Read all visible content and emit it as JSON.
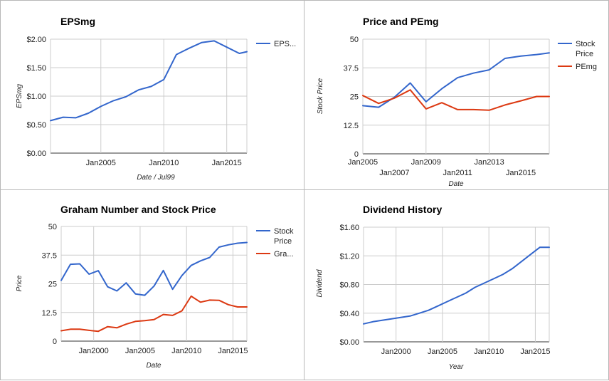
{
  "chart_data": [
    {
      "type": "line",
      "title": "EPSmg",
      "xlabel": "Date / Jul99",
      "ylabel": "EPSmg",
      "x_ticks": [
        "Jan2005",
        "Jan2010",
        "Jan2015"
      ],
      "y_ticks": [
        "$0.00",
        "$0.50",
        "$1.00",
        "$1.50",
        "$2.00"
      ],
      "xlim": [
        2001.0,
        2016.6
      ],
      "ylim": [
        0,
        2.0
      ],
      "grid": true,
      "legend_position": "right",
      "series": [
        {
          "name": "EPS...",
          "color": "#3366cc",
          "x": [
            2001,
            2002,
            2003,
            2004,
            2005,
            2006,
            2007,
            2008,
            2009,
            2010,
            2011,
            2012,
            2013,
            2014,
            2015,
            2016,
            2016.6
          ],
          "y": [
            0.57,
            0.63,
            0.62,
            0.7,
            0.82,
            0.92,
            0.99,
            1.11,
            1.17,
            1.29,
            1.73,
            1.84,
            1.94,
            1.97,
            1.86,
            1.75,
            1.78
          ]
        }
      ]
    },
    {
      "type": "line",
      "title": "Price and PEmg",
      "xlabel": "Date",
      "ylabel": "Stock Price",
      "x_ticks": [
        "Jan2005",
        "Jan2007",
        "Jan2009",
        "Jan2011",
        "Jan2013",
        "Jan2015"
      ],
      "y_ticks": [
        "0",
        "12.5",
        "25",
        "37.5",
        "50"
      ],
      "xlim": [
        2005.0,
        2016.8
      ],
      "ylim": [
        0,
        50
      ],
      "grid": true,
      "legend_position": "right",
      "series": [
        {
          "name": "Stock Price",
          "color": "#3366cc",
          "x": [
            2005,
            2006,
            2007,
            2008,
            2009,
            2010,
            2011,
            2012,
            2013,
            2014,
            2015,
            2016,
            2016.8
          ],
          "y": [
            21,
            20.3,
            24.7,
            30.9,
            22.7,
            28.4,
            33.2,
            35.2,
            36.6,
            41.6,
            42.6,
            43.3,
            44.0
          ]
        },
        {
          "name": "PEmg",
          "color": "#dc3912",
          "x": [
            2005,
            2006,
            2007,
            2008,
            2009,
            2010,
            2011,
            2012,
            2013,
            2014,
            2015,
            2016,
            2016.8
          ],
          "y": [
            25.4,
            22.0,
            24.3,
            27.9,
            19.6,
            22.3,
            19.3,
            19.3,
            19.0,
            21.3,
            23.1,
            25.0,
            25.0
          ]
        }
      ]
    },
    {
      "type": "line",
      "title": "Graham Number and Stock Price",
      "xlabel": "Date",
      "ylabel": "Price",
      "x_ticks": [
        "Jan2000",
        "Jan2005",
        "Jan2010",
        "Jan2015"
      ],
      "y_ticks": [
        "0",
        "12.5",
        "25",
        "37.5",
        "50"
      ],
      "xlim": [
        1996.5,
        2016.5
      ],
      "ylim": [
        0,
        50
      ],
      "grid": true,
      "legend_position": "right",
      "series": [
        {
          "name": "Stock Price",
          "color": "#3366cc",
          "x": [
            1996.5,
            1997.5,
            1998.5,
            1999.5,
            2000.5,
            2001.5,
            2002.5,
            2003.5,
            2004.5,
            2005.5,
            2006.5,
            2007.5,
            2008.5,
            2009.5,
            2010.5,
            2011.5,
            2012.5,
            2013.5,
            2014.5,
            2015.5,
            2016.5
          ],
          "y": [
            26.5,
            33.5,
            33.7,
            29.2,
            30.7,
            23.7,
            21.9,
            25.4,
            20.6,
            20.0,
            24.0,
            30.8,
            22.6,
            28.6,
            33.0,
            35.0,
            36.5,
            41.0,
            42.0,
            42.7,
            43.0
          ]
        },
        {
          "name": "Gra...",
          "color": "#dc3912",
          "x": [
            1996.5,
            1997.5,
            1998.5,
            1999.5,
            2000.5,
            2001.5,
            2002.5,
            2003.5,
            2004.5,
            2005.5,
            2006.5,
            2007.5,
            2008.5,
            2009.5,
            2010.5,
            2011.5,
            2012.5,
            2013.5,
            2014.5,
            2015.5,
            2016.5
          ],
          "y": [
            4.5,
            5.2,
            5.2,
            4.7,
            4.3,
            6.3,
            5.8,
            7.4,
            8.6,
            8.9,
            9.4,
            11.6,
            11.2,
            13.2,
            19.6,
            17.0,
            17.9,
            17.8,
            15.9,
            14.9,
            14.9
          ]
        }
      ]
    },
    {
      "type": "line",
      "title": "Dividend History",
      "xlabel": "Year",
      "ylabel": "Dividend",
      "x_ticks": [
        "Jan2000",
        "Jan2005",
        "Jan2010",
        "Jan2015"
      ],
      "y_ticks": [
        "$0.00",
        "$0.40",
        "$0.80",
        "$1.20",
        "$1.60"
      ],
      "xlim": [
        1996.5,
        2016.5
      ],
      "ylim": [
        0,
        1.6
      ],
      "grid": true,
      "series": [
        {
          "name": "",
          "color": "#3366cc",
          "x": [
            1996.5,
            1997.5,
            1998.5,
            1999.5,
            2000.5,
            2001.5,
            2002.5,
            2003.5,
            2004.5,
            2005.5,
            2006.5,
            2007.5,
            2008.5,
            2009.5,
            2010.5,
            2011.5,
            2012.5,
            2013.5,
            2014.5,
            2015.5,
            2016.5
          ],
          "y": [
            0.25,
            0.28,
            0.3,
            0.32,
            0.34,
            0.36,
            0.4,
            0.44,
            0.5,
            0.56,
            0.62,
            0.68,
            0.76,
            0.82,
            0.88,
            0.94,
            1.02,
            1.12,
            1.22,
            1.32,
            1.32
          ]
        }
      ]
    }
  ]
}
